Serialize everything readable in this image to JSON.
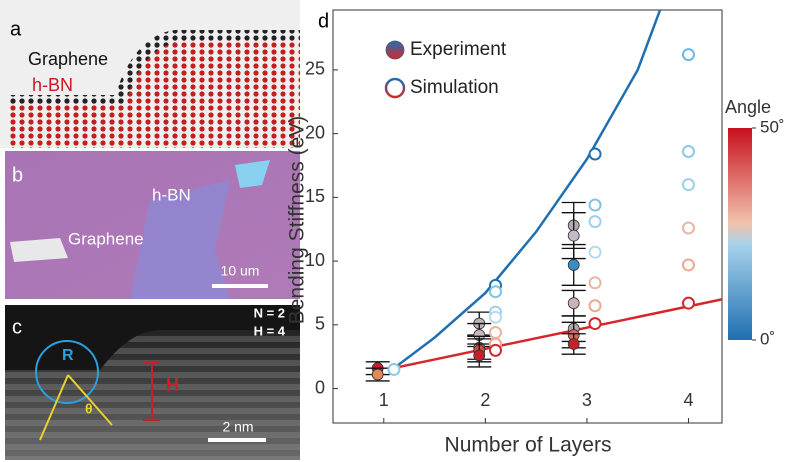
{
  "panel_a": {
    "label": "a",
    "graphene": "Graphene",
    "hbn": "h-BN"
  },
  "panel_b": {
    "label": "b",
    "hbn": "h-BN",
    "graphene": "Graphene",
    "scale": "10 um"
  },
  "panel_c": {
    "label": "c",
    "n": "N = 2",
    "h": "H = 4",
    "r": "R",
    "theta": "θ",
    "h_marker": "H",
    "scale": "2 nm"
  },
  "chart_data": {
    "type": "scatter",
    "panel_label": "d",
    "x_label": "Number of Layers",
    "y_label": "Bending Stiffness (eV)",
    "xlim": [
      0.5,
      4.33
    ],
    "ylim": [
      -2.7,
      29.7
    ],
    "xticks": [
      1,
      2,
      3,
      4
    ],
    "yticks": [
      0,
      5,
      10,
      15,
      20,
      25
    ],
    "series": [
      {
        "name": "Experiment",
        "filled": true,
        "x": [
          0.94,
          0.94,
          1.94,
          1.94,
          1.94,
          1.94,
          1.94,
          2.87,
          2.87,
          2.87,
          2.87,
          2.87,
          2.87,
          2.87
        ],
        "values": [
          1.6,
          1.1,
          5.1,
          4.2,
          3.2,
          3.0,
          2.6,
          12.8,
          12.0,
          9.7,
          6.7,
          4.7,
          4.2,
          3.5
        ],
        "errors": [
          0.5,
          0.5,
          0.9,
          0.9,
          0.9,
          0.9,
          0.9,
          1.8,
          1.8,
          1.6,
          1.0,
          1.0,
          1.0,
          0.8
        ],
        "colors": [
          "#c8202a",
          "#e08a5a",
          "#b9b3bb",
          "#c9b8bb",
          "#d86a5c",
          "#d84c48",
          "#c8202a",
          "#b0aab2",
          "#c4bcc4",
          "#3a8ec4",
          "#c9b3b3",
          "#b5a9ad",
          "#d86a5c",
          "#c8202a"
        ]
      },
      {
        "name": "Simulation",
        "filled": false,
        "x": [
          1.1,
          2.1,
          2.1,
          2.1,
          2.1,
          2.1,
          2.1,
          2.1,
          3.08,
          3.08,
          3.08,
          3.08,
          3.08,
          3.08,
          3.08,
          4.0,
          4.0,
          4.0,
          4.0,
          4.0,
          4.0
        ],
        "values": [
          1.5,
          8.1,
          7.6,
          6.0,
          5.6,
          4.4,
          3.5,
          3.0,
          18.4,
          14.4,
          13.1,
          10.7,
          8.3,
          6.5,
          5.1,
          26.2,
          18.6,
          16.0,
          12.6,
          9.7,
          6.7
        ],
        "colors": [
          "#8cc8e8",
          "#1f6fb2",
          "#7fc3e6",
          "#9fd0ea",
          "#b7d9ec",
          "#e8b6a4",
          "#eda98c",
          "#d6262c",
          "#1f6fb2",
          "#7fc3e6",
          "#9fd0ea",
          "#b7d9ec",
          "#e8b6a4",
          "#eda98c",
          "#d6262c",
          "#6bb8e2",
          "#8cc8e8",
          "#9fd0ea",
          "#e8b6a4",
          "#eda98c",
          "#d6262c"
        ]
      }
    ],
    "lines": [
      {
        "color": "#1f6fb2",
        "x": [
          1.1,
          1.5,
          2.0,
          2.5,
          3.0,
          3.5,
          3.72
        ],
        "values": [
          1.6,
          4.0,
          7.5,
          12.3,
          18.0,
          25.0,
          29.7
        ]
      },
      {
        "color": "#d6262c",
        "x": [
          1.15,
          4.33
        ],
        "values": [
          1.7,
          7.0
        ]
      }
    ],
    "colorbar": {
      "title": "Angle",
      "ticks": [
        {
          "value": 50,
          "label": "50˚"
        },
        {
          "value": 0,
          "label": "0˚"
        }
      ],
      "range": [
        0,
        50
      ]
    }
  }
}
